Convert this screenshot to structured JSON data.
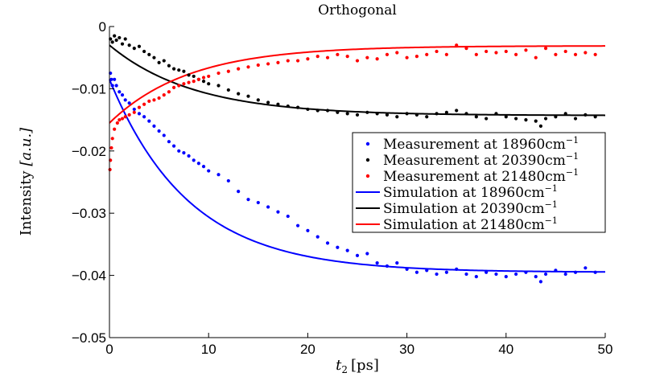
{
  "chart_data": {
    "type": "scatter",
    "title": "Orthogonal",
    "xlabel_var": "t",
    "xlabel_sub": "2",
    "xlabel_unit": "[ps]",
    "ylabel_text": "Intensity",
    "ylabel_unit": "[a.u.]",
    "xlim": [
      0,
      50
    ],
    "ylim": [
      -0.05,
      0
    ],
    "xticks": [
      0,
      10,
      20,
      30,
      40,
      50
    ],
    "xtick_labels": [
      "0",
      "10",
      "20",
      "30",
      "40",
      "50"
    ],
    "yticks": [
      0,
      -0.01,
      -0.02,
      -0.03,
      -0.04,
      -0.05
    ],
    "ytick_labels": [
      "0",
      "−0.01",
      "−0.02",
      "−0.03",
      "−0.04",
      "−0.05"
    ],
    "legend_position": "right",
    "legend": [
      {
        "text": "Measurement at 18960cm",
        "sup": "−1",
        "color": "#0000ff",
        "kind": "marker"
      },
      {
        "text": "Measurement at 20390cm",
        "sup": "−1",
        "color": "#000000",
        "kind": "marker"
      },
      {
        "text": "Measurement at 21480cm",
        "sup": "−1",
        "color": "#ff0000",
        "kind": "marker"
      },
      {
        "text": "Simulation at 18960cm",
        "sup": "−1",
        "color": "#0000ff",
        "kind": "line"
      },
      {
        "text": "Simulation at 20390cm",
        "sup": "−1",
        "color": "#000000",
        "kind": "line"
      },
      {
        "text": "Simulation at 21480cm",
        "sup": "−1",
        "color": "#ff0000",
        "kind": "line"
      }
    ],
    "series": [
      {
        "name": "Measurement at 18960cm-1",
        "kind": "scatter",
        "color": "#0000ff",
        "points": [
          [
            0.1,
            -0.0075
          ],
          [
            0.2,
            -0.0085
          ],
          [
            0.3,
            -0.0095
          ],
          [
            0.5,
            -0.0085
          ],
          [
            0.7,
            -0.0095
          ],
          [
            1.0,
            -0.0105
          ],
          [
            1.3,
            -0.011
          ],
          [
            1.6,
            -0.0118
          ],
          [
            2.0,
            -0.0123
          ],
          [
            2.5,
            -0.0133
          ],
          [
            3.0,
            -0.014
          ],
          [
            3.5,
            -0.0145
          ],
          [
            4.0,
            -0.0152
          ],
          [
            4.5,
            -0.016
          ],
          [
            5.0,
            -0.0168
          ],
          [
            5.5,
            -0.0175
          ],
          [
            6.0,
            -0.0185
          ],
          [
            6.5,
            -0.0192
          ],
          [
            7.0,
            -0.02
          ],
          [
            7.5,
            -0.0203
          ],
          [
            8.0,
            -0.0208
          ],
          [
            8.5,
            -0.0215
          ],
          [
            9.0,
            -0.022
          ],
          [
            9.5,
            -0.0225
          ],
          [
            10.0,
            -0.0232
          ],
          [
            11.0,
            -0.0238
          ],
          [
            12.0,
            -0.0248
          ],
          [
            13.0,
            -0.0265
          ],
          [
            14.0,
            -0.0278
          ],
          [
            15.0,
            -0.0283
          ],
          [
            16.0,
            -0.029
          ],
          [
            17.0,
            -0.0298
          ],
          [
            18.0,
            -0.0305
          ],
          [
            19.0,
            -0.032
          ],
          [
            20.0,
            -0.0328
          ],
          [
            21.0,
            -0.0338
          ],
          [
            22.0,
            -0.0348
          ],
          [
            23.0,
            -0.0355
          ],
          [
            24.0,
            -0.036
          ],
          [
            25.0,
            -0.0368
          ],
          [
            26.0,
            -0.0365
          ],
          [
            27.0,
            -0.038
          ],
          [
            28.0,
            -0.0385
          ],
          [
            29.0,
            -0.038
          ],
          [
            30.0,
            -0.039
          ],
          [
            31.0,
            -0.0395
          ],
          [
            32.0,
            -0.0392
          ],
          [
            33.0,
            -0.0398
          ],
          [
            34.0,
            -0.0395
          ],
          [
            35.0,
            -0.039
          ],
          [
            36.0,
            -0.0398
          ],
          [
            37.0,
            -0.0402
          ],
          [
            38.0,
            -0.0395
          ],
          [
            39.0,
            -0.0398
          ],
          [
            40.0,
            -0.0402
          ],
          [
            41.0,
            -0.0398
          ],
          [
            42.0,
            -0.0395
          ],
          [
            43.0,
            -0.0402
          ],
          [
            43.5,
            -0.041
          ],
          [
            44.0,
            -0.0398
          ],
          [
            45.0,
            -0.0392
          ],
          [
            46.0,
            -0.0398
          ],
          [
            47.0,
            -0.0395
          ],
          [
            48.0,
            -0.0388
          ],
          [
            49.0,
            -0.0395
          ]
        ]
      },
      {
        "name": "Measurement at 20390cm-1",
        "kind": "scatter",
        "color": "#000000",
        "points": [
          [
            0.1,
            -0.002
          ],
          [
            0.3,
            -0.0025
          ],
          [
            0.5,
            -0.0015
          ],
          [
            0.7,
            -0.0022
          ],
          [
            1.0,
            -0.0018
          ],
          [
            1.3,
            -0.0028
          ],
          [
            1.6,
            -0.002
          ],
          [
            2.0,
            -0.003
          ],
          [
            2.5,
            -0.0035
          ],
          [
            3.0,
            -0.0032
          ],
          [
            3.5,
            -0.004
          ],
          [
            4.0,
            -0.0045
          ],
          [
            4.5,
            -0.005
          ],
          [
            5.0,
            -0.0058
          ],
          [
            5.5,
            -0.0055
          ],
          [
            6.0,
            -0.0063
          ],
          [
            6.5,
            -0.0068
          ],
          [
            7.0,
            -0.007
          ],
          [
            7.5,
            -0.0072
          ],
          [
            8.0,
            -0.0078
          ],
          [
            8.5,
            -0.008
          ],
          [
            9.0,
            -0.0085
          ],
          [
            9.5,
            -0.0088
          ],
          [
            10.0,
            -0.0092
          ],
          [
            11.0,
            -0.0095
          ],
          [
            12.0,
            -0.0102
          ],
          [
            13.0,
            -0.0108
          ],
          [
            14.0,
            -0.0112
          ],
          [
            15.0,
            -0.0118
          ],
          [
            16.0,
            -0.0122
          ],
          [
            17.0,
            -0.0125
          ],
          [
            18.0,
            -0.0128
          ],
          [
            19.0,
            -0.013
          ],
          [
            20.0,
            -0.0133
          ],
          [
            21.0,
            -0.0135
          ],
          [
            22.0,
            -0.0135
          ],
          [
            23.0,
            -0.0138
          ],
          [
            24.0,
            -0.014
          ],
          [
            25.0,
            -0.0142
          ],
          [
            26.0,
            -0.0138
          ],
          [
            27.0,
            -0.014
          ],
          [
            28.0,
            -0.0142
          ],
          [
            29.0,
            -0.0145
          ],
          [
            30.0,
            -0.014
          ],
          [
            31.0,
            -0.0142
          ],
          [
            32.0,
            -0.0145
          ],
          [
            33.0,
            -0.014
          ],
          [
            34.0,
            -0.0138
          ],
          [
            35.0,
            -0.0135
          ],
          [
            36.0,
            -0.014
          ],
          [
            37.0,
            -0.0145
          ],
          [
            38.0,
            -0.0148
          ],
          [
            39.0,
            -0.014
          ],
          [
            40.0,
            -0.0145
          ],
          [
            41.0,
            -0.0148
          ],
          [
            42.0,
            -0.015
          ],
          [
            43.0,
            -0.0152
          ],
          [
            43.5,
            -0.016
          ],
          [
            44.0,
            -0.0148
          ],
          [
            45.0,
            -0.0145
          ],
          [
            46.0,
            -0.014
          ],
          [
            47.0,
            -0.0148
          ],
          [
            48.0,
            -0.0142
          ],
          [
            49.0,
            -0.0145
          ]
        ]
      },
      {
        "name": "Measurement at 21480cm-1",
        "kind": "scatter",
        "color": "#ff0000",
        "points": [
          [
            0.05,
            -0.023
          ],
          [
            0.1,
            -0.0215
          ],
          [
            0.2,
            -0.0195
          ],
          [
            0.3,
            -0.018
          ],
          [
            0.5,
            -0.0165
          ],
          [
            0.8,
            -0.0155
          ],
          [
            1.0,
            -0.015
          ],
          [
            1.3,
            -0.0148
          ],
          [
            1.6,
            -0.0145
          ],
          [
            2.0,
            -0.0142
          ],
          [
            2.5,
            -0.0138
          ],
          [
            3.0,
            -0.013
          ],
          [
            3.5,
            -0.0125
          ],
          [
            4.0,
            -0.012
          ],
          [
            4.5,
            -0.0118
          ],
          [
            5.0,
            -0.0115
          ],
          [
            5.5,
            -0.011
          ],
          [
            6.0,
            -0.0105
          ],
          [
            6.5,
            -0.0098
          ],
          [
            7.0,
            -0.0095
          ],
          [
            7.5,
            -0.0092
          ],
          [
            8.0,
            -0.009
          ],
          [
            8.5,
            -0.0088
          ],
          [
            9.0,
            -0.0085
          ],
          [
            9.5,
            -0.0082
          ],
          [
            10.0,
            -0.008
          ],
          [
            11.0,
            -0.0075
          ],
          [
            12.0,
            -0.0072
          ],
          [
            13.0,
            -0.0068
          ],
          [
            14.0,
            -0.0065
          ],
          [
            15.0,
            -0.0062
          ],
          [
            16.0,
            -0.006
          ],
          [
            17.0,
            -0.0058
          ],
          [
            18.0,
            -0.0055
          ],
          [
            19.0,
            -0.0055
          ],
          [
            20.0,
            -0.0052
          ],
          [
            21.0,
            -0.0048
          ],
          [
            22.0,
            -0.005
          ],
          [
            23.0,
            -0.0045
          ],
          [
            24.0,
            -0.0048
          ],
          [
            25.0,
            -0.0055
          ],
          [
            26.0,
            -0.005
          ],
          [
            27.0,
            -0.0052
          ],
          [
            28.0,
            -0.0045
          ],
          [
            29.0,
            -0.0042
          ],
          [
            30.0,
            -0.005
          ],
          [
            31.0,
            -0.0048
          ],
          [
            32.0,
            -0.0045
          ],
          [
            33.0,
            -0.004
          ],
          [
            34.0,
            -0.0045
          ],
          [
            35.0,
            -0.003
          ],
          [
            36.0,
            -0.0035
          ],
          [
            37.0,
            -0.0045
          ],
          [
            38.0,
            -0.004
          ],
          [
            39.0,
            -0.0042
          ],
          [
            40.0,
            -0.004
          ],
          [
            41.0,
            -0.0045
          ],
          [
            42.0,
            -0.0038
          ],
          [
            43.0,
            -0.005
          ],
          [
            44.0,
            -0.0035
          ],
          [
            45.0,
            -0.0045
          ],
          [
            46.0,
            -0.004
          ],
          [
            47.0,
            -0.0045
          ],
          [
            48.0,
            -0.0042
          ],
          [
            49.0,
            -0.0045
          ]
        ]
      },
      {
        "name": "Simulation at 18960cm-1",
        "kind": "line",
        "color": "#0000ff",
        "model": {
          "a": -0.0395,
          "b": 0.031,
          "tau": 8.0
        }
      },
      {
        "name": "Simulation at 20390cm-1",
        "kind": "line",
        "color": "#000000",
        "model": {
          "a": -0.0143,
          "b": 0.0113,
          "tau": 8.5
        }
      },
      {
        "name": "Simulation at 21480cm-1",
        "kind": "line",
        "color": "#ff0000",
        "model": {
          "a": -0.0031,
          "b": -0.0124,
          "tau": 8.0
        }
      }
    ]
  }
}
